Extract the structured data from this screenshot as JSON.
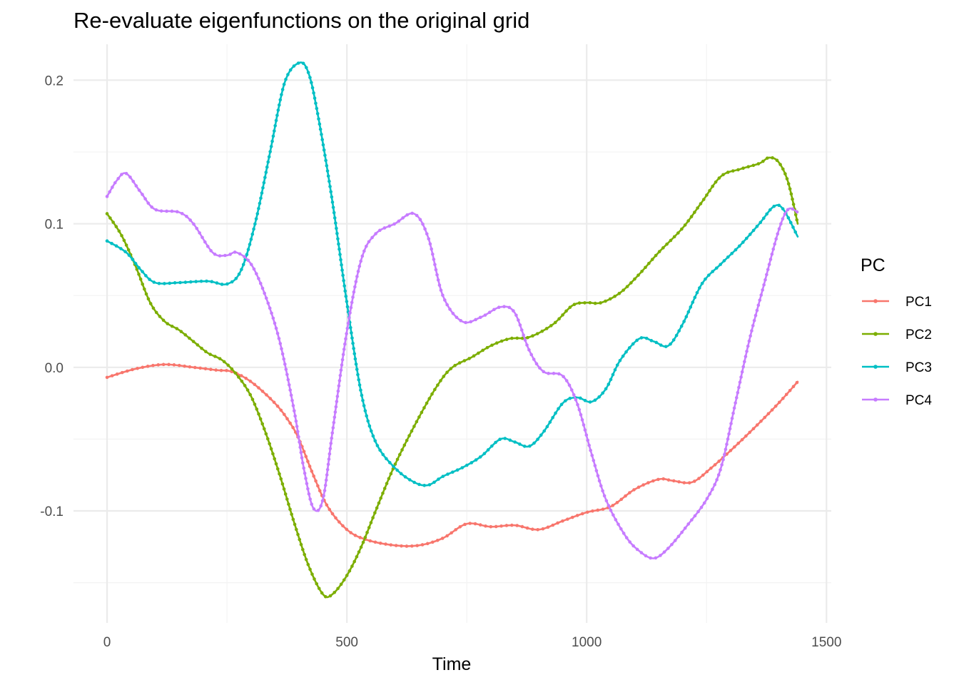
{
  "chart_data": {
    "type": "line",
    "title": "Re-evaluate eigenfunctions on the original grid",
    "xlabel": "Time",
    "ylabel": "",
    "xlim": [
      -70,
      1510
    ],
    "ylim": [
      -0.178,
      0.225
    ],
    "x_ticks": [
      0,
      500,
      1000,
      1500
    ],
    "x_tick_labels": [
      "0",
      "500",
      "1000",
      "1500"
    ],
    "y_ticks": [
      -0.1,
      0.0,
      0.1,
      0.2
    ],
    "y_tick_labels": [
      "-0.1",
      "0.0",
      "0.1",
      "0.2"
    ],
    "x_minor_ticks": [
      250,
      750,
      1250
    ],
    "y_minor_ticks": [
      -0.15,
      -0.05,
      0.05,
      0.15
    ],
    "grid": true,
    "legend": {
      "title": "PC",
      "position": "right"
    },
    "series": [
      {
        "name": "PC1",
        "color": "#F8766D",
        "x": [
          0,
          60,
          120,
          180,
          230,
          260,
          300,
          350,
          380,
          400,
          430,
          460,
          500,
          540,
          600,
          650,
          700,
          750,
          800,
          850,
          900,
          950,
          1000,
          1050,
          1100,
          1150,
          1180,
          1220,
          1260,
          1300,
          1350,
          1400,
          1440
        ],
        "y": [
          -0.007,
          -0.001,
          0.002,
          0.0,
          -0.002,
          -0.003,
          -0.01,
          -0.025,
          -0.038,
          -0.05,
          -0.075,
          -0.097,
          -0.113,
          -0.12,
          -0.124,
          -0.124,
          -0.119,
          -0.109,
          -0.111,
          -0.11,
          -0.113,
          -0.107,
          -0.101,
          -0.097,
          -0.085,
          -0.078,
          -0.079,
          -0.08,
          -0.07,
          -0.058,
          -0.042,
          -0.025,
          -0.01
        ]
      },
      {
        "name": "PC2",
        "color": "#7CAE00",
        "x": [
          0,
          30,
          60,
          90,
          120,
          150,
          180,
          210,
          240,
          270,
          300,
          330,
          360,
          390,
          420,
          450,
          470,
          500,
          530,
          560,
          600,
          650,
          690,
          720,
          760,
          800,
          840,
          880,
          930,
          970,
          1000,
          1030,
          1070,
          1110,
          1150,
          1200,
          1240,
          1280,
          1320,
          1360,
          1380,
          1400,
          1420,
          1440
        ],
        "y": [
          0.107,
          0.092,
          0.07,
          0.045,
          0.032,
          0.026,
          0.018,
          0.01,
          0.005,
          -0.005,
          -0.02,
          -0.045,
          -0.075,
          -0.108,
          -0.138,
          -0.158,
          -0.158,
          -0.145,
          -0.125,
          -0.1,
          -0.068,
          -0.035,
          -0.012,
          0.0,
          0.007,
          0.015,
          0.02,
          0.021,
          0.03,
          0.043,
          0.045,
          0.045,
          0.052,
          0.065,
          0.08,
          0.097,
          0.115,
          0.133,
          0.138,
          0.142,
          0.146,
          0.143,
          0.129,
          0.1
        ]
      },
      {
        "name": "PC3",
        "color": "#00BFC4",
        "x": [
          0,
          40,
          70,
          100,
          150,
          210,
          250,
          280,
          310,
          340,
          370,
          400,
          420,
          440,
          470,
          500,
          530,
          560,
          600,
          640,
          670,
          700,
          740,
          780,
          820,
          850,
          880,
          910,
          950,
          980,
          1010,
          1040,
          1070,
          1110,
          1140,
          1170,
          1200,
          1240,
          1280,
          1320,
          1360,
          1390,
          1410,
          1440
        ],
        "y": [
          0.088,
          0.08,
          0.068,
          0.059,
          0.059,
          0.06,
          0.058,
          0.068,
          0.102,
          0.15,
          0.198,
          0.212,
          0.205,
          0.175,
          0.115,
          0.045,
          -0.018,
          -0.052,
          -0.07,
          -0.08,
          -0.082,
          -0.076,
          -0.07,
          -0.062,
          -0.05,
          -0.052,
          -0.055,
          -0.045,
          -0.025,
          -0.021,
          -0.024,
          -0.015,
          0.005,
          0.02,
          0.018,
          0.015,
          0.03,
          0.058,
          0.072,
          0.085,
          0.1,
          0.112,
          0.11,
          0.091
        ]
      },
      {
        "name": "PC4",
        "color": "#C77CFF",
        "x": [
          0,
          20,
          40,
          70,
          100,
          150,
          180,
          220,
          250,
          270,
          300,
          330,
          360,
          390,
          410,
          430,
          450,
          470,
          500,
          530,
          560,
          600,
          640,
          670,
          700,
          740,
          780,
          820,
          850,
          880,
          910,
          950,
          980,
          1010,
          1040,
          1080,
          1110,
          1140,
          1170,
          1210,
          1250,
          1280,
          1310,
          1340,
          1370,
          1400,
          1420,
          1440
        ],
        "y": [
          0.119,
          0.13,
          0.135,
          0.122,
          0.11,
          0.108,
          0.1,
          0.08,
          0.078,
          0.08,
          0.072,
          0.05,
          0.018,
          -0.03,
          -0.07,
          -0.098,
          -0.092,
          -0.045,
          0.025,
          0.075,
          0.093,
          0.1,
          0.107,
          0.09,
          0.05,
          0.032,
          0.035,
          0.042,
          0.038,
          0.012,
          -0.003,
          -0.006,
          -0.025,
          -0.06,
          -0.092,
          -0.117,
          -0.128,
          -0.133,
          -0.126,
          -0.11,
          -0.092,
          -0.07,
          -0.025,
          0.02,
          0.058,
          0.095,
          0.11,
          0.108
        ]
      }
    ]
  }
}
